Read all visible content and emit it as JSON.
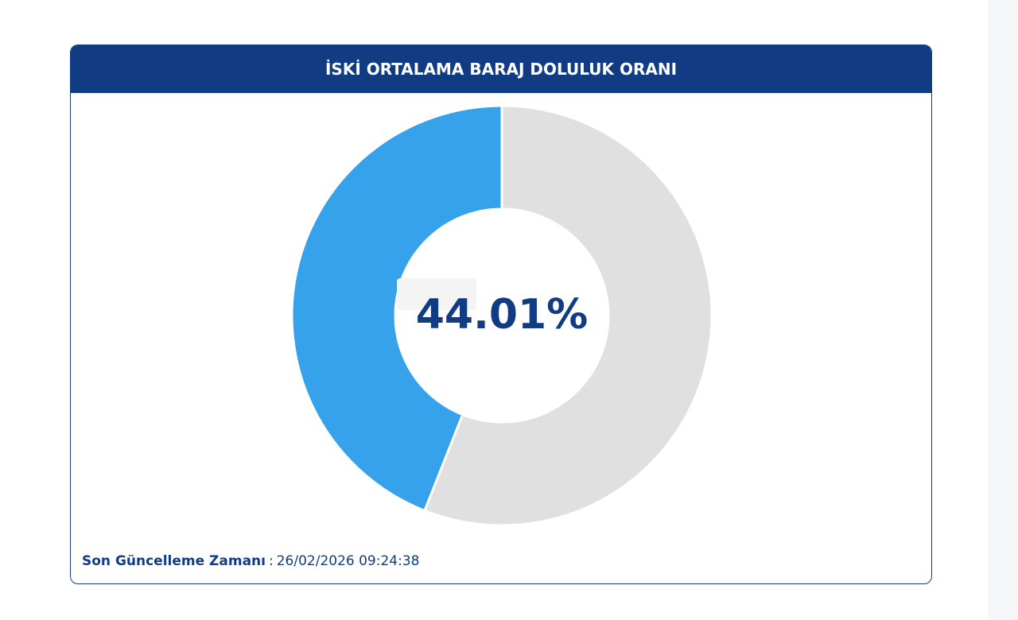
{
  "card": {
    "title": "İSKİ ORTALAMA BARAJ DOLULUK ORANI"
  },
  "chart_data": {
    "type": "pie",
    "donut": true,
    "slices": [
      {
        "value": 44.01,
        "color": "#36a2eb"
      },
      {
        "value": 55.99,
        "color": "#e0e0e0"
      }
    ],
    "center_label": "44.01%"
  },
  "footer": {
    "label": "Son Güncelleme Zamanı",
    "separator": ":",
    "timestamp": "26/02/2026 09:24:38"
  },
  "colors": {
    "header_bg": "#113c84",
    "accent": "#36a2eb",
    "remainder": "#e0e0e0"
  }
}
